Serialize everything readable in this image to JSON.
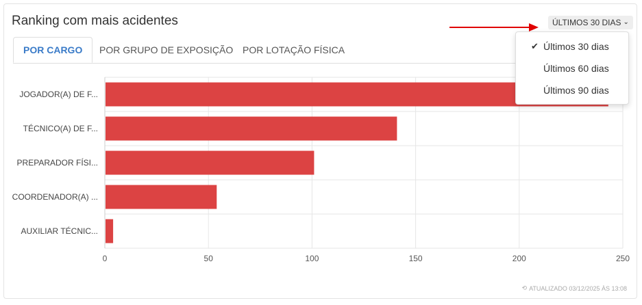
{
  "card": {
    "title": "Ranking com mais acidentes",
    "period_button_label": "ÚLTIMOS 30 DIAS",
    "updated_text": "ATUALIZADO 03/12/2025 ÀS 13:08"
  },
  "tabs": [
    {
      "label": "POR CARGO",
      "active": true
    },
    {
      "label": "POR GRUPO DE EXPOSIÇÃO",
      "active": false
    },
    {
      "label": "POR LOTAÇÃO FÍSICA",
      "active": false
    }
  ],
  "dropdown": {
    "items": [
      {
        "label": "Últimos 30 dias",
        "selected": true
      },
      {
        "label": "Últimos 60 dias",
        "selected": false
      },
      {
        "label": "Últimos 90 dias",
        "selected": false
      }
    ]
  },
  "colors": {
    "bar": "#dc4343",
    "accent": "#3a7bc8",
    "annotation_arrow": "#e00000"
  },
  "chart_data": {
    "type": "bar",
    "orientation": "horizontal",
    "categories": [
      "JOGADOR(A) DE F...",
      "TÉCNICO(A) DE F...",
      "PREPARADOR FÍSI...",
      "COORDENADOR(A) ...",
      "AUXILIAR TÉCNIC..."
    ],
    "values": [
      243,
      141,
      101,
      54,
      4
    ],
    "x_ticks": [
      0,
      50,
      100,
      150,
      200,
      250
    ],
    "xlim": [
      0,
      250
    ],
    "grid": true,
    "title": "",
    "xlabel": "",
    "ylabel": ""
  }
}
